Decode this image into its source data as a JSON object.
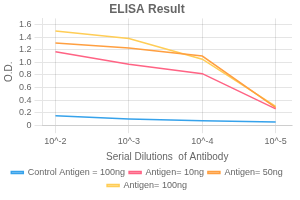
{
  "chart_data": {
    "type": "line",
    "title": "ELISA Result",
    "xlabel": "Serial Dilutions  of Antibody",
    "ylabel": "O.D.",
    "x": [
      0.01,
      0.001,
      0.0001,
      1e-05
    ],
    "series": [
      {
        "name": "Control Antigen = 100ng",
        "values": [
          0.15,
          0.1,
          0.07,
          0.05
        ]
      },
      {
        "name": "Antigen= 10ng",
        "values": [
          1.17,
          0.97,
          0.82,
          0.26
        ]
      },
      {
        "name": "Antigen= 50ng",
        "values": [
          1.31,
          1.23,
          1.1,
          0.28
        ]
      },
      {
        "name": "Antigen= 100ng",
        "values": [
          1.5,
          1.38,
          1.05,
          0.3
        ]
      }
    ],
    "log": "x",
    "xlim": [
      0.015,
      6e-06
    ],
    "xticks": [
      {
        "value": 0.01,
        "label": "10^-2"
      },
      {
        "value": 0.001,
        "label": "10^-3"
      },
      {
        "value": 0.0001,
        "label": "10^-4"
      },
      {
        "value": 1e-05,
        "label": "10^-5"
      }
    ],
    "ylim": [
      0,
      1.7
    ],
    "yticks": [
      0,
      0.2,
      0.4,
      0.6,
      0.8,
      {
        "value": 1,
        "label": "1.0"
      },
      1.2,
      1.4,
      1.6
    ],
    "grid": true,
    "legend": "bottom"
  }
}
